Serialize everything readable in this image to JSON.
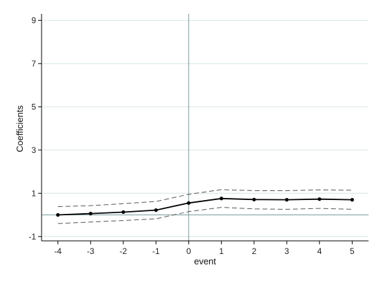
{
  "chart_data": {
    "type": "line",
    "title": "",
    "xlabel": "event",
    "ylabel": "Coefficients",
    "xlim": [
      -4.5,
      5.5
    ],
    "ylim": [
      -1.2,
      9.3
    ],
    "x_ticks": [
      -4,
      -3,
      -2,
      -1,
      0,
      1,
      2,
      3,
      4,
      5
    ],
    "y_ticks": [
      -1,
      1,
      3,
      5,
      7,
      9
    ],
    "grid": "horizontal",
    "vertical_reference_x": 0,
    "horizontal_reference_y": 0,
    "x": [
      -4,
      -3,
      -2,
      -1,
      0,
      1,
      2,
      3,
      4,
      5
    ],
    "series": [
      {
        "role": "estimate",
        "style": "solid-with-markers",
        "values": [
          0.0,
          0.06,
          0.13,
          0.22,
          0.55,
          0.76,
          0.71,
          0.7,
          0.73,
          0.7
        ]
      },
      {
        "role": "upper",
        "style": "dashed",
        "values": [
          0.38,
          0.43,
          0.52,
          0.62,
          0.95,
          1.17,
          1.12,
          1.12,
          1.16,
          1.14
        ]
      },
      {
        "role": "lower",
        "style": "dashed",
        "values": [
          -0.4,
          -0.33,
          -0.26,
          -0.18,
          0.15,
          0.35,
          0.28,
          0.26,
          0.3,
          0.26
        ]
      }
    ],
    "colors": {
      "estimate": "#000000",
      "band": "#555555",
      "grid": "#d8e4e4",
      "reference": "#7a9a9a",
      "axis": "#000000"
    }
  }
}
